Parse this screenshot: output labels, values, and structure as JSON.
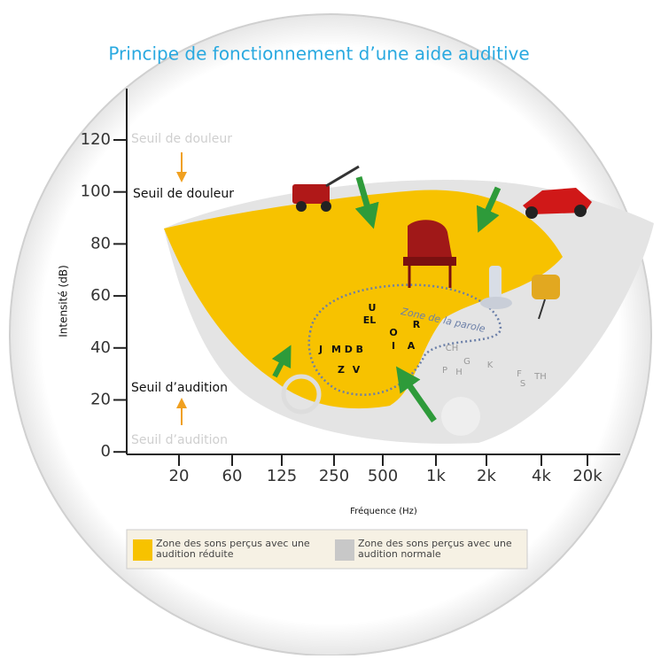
{
  "title": "Principe de fonctionnement d’une aide auditive",
  "y_axis": {
    "label": "Intensité (dB)",
    "ticks": [
      "120",
      "100",
      "80",
      "60",
      "40",
      "20",
      "0"
    ]
  },
  "x_axis": {
    "label": "Fréquence (Hz)",
    "ticks": [
      "20",
      "60",
      "125",
      "250",
      "500",
      "1k",
      "2k",
      "4k",
      "20k"
    ]
  },
  "annotations": {
    "pain_threshold_normal": "Seuil de douleur",
    "pain_threshold_reduced": "Seuil de douleur",
    "hearing_threshold_reduced": "Seuil d’audition",
    "hearing_threshold_normal": "Seuil d’audition",
    "speech_zone": "Zone de la parole"
  },
  "phonemes": [
    "U",
    "EL",
    "O",
    "R",
    "I",
    "A",
    "J",
    "M D B",
    "Z",
    "V",
    "CH",
    "P",
    "H",
    "G",
    "K",
    "F",
    "S",
    "TH"
  ],
  "legend": [
    {
      "label": "Zone des sons perçus avec une audition réduite",
      "color": "#f7c200"
    },
    {
      "label": "Zone des sons perçus avec une audition normale",
      "color": "#c8c8c8"
    }
  ]
}
